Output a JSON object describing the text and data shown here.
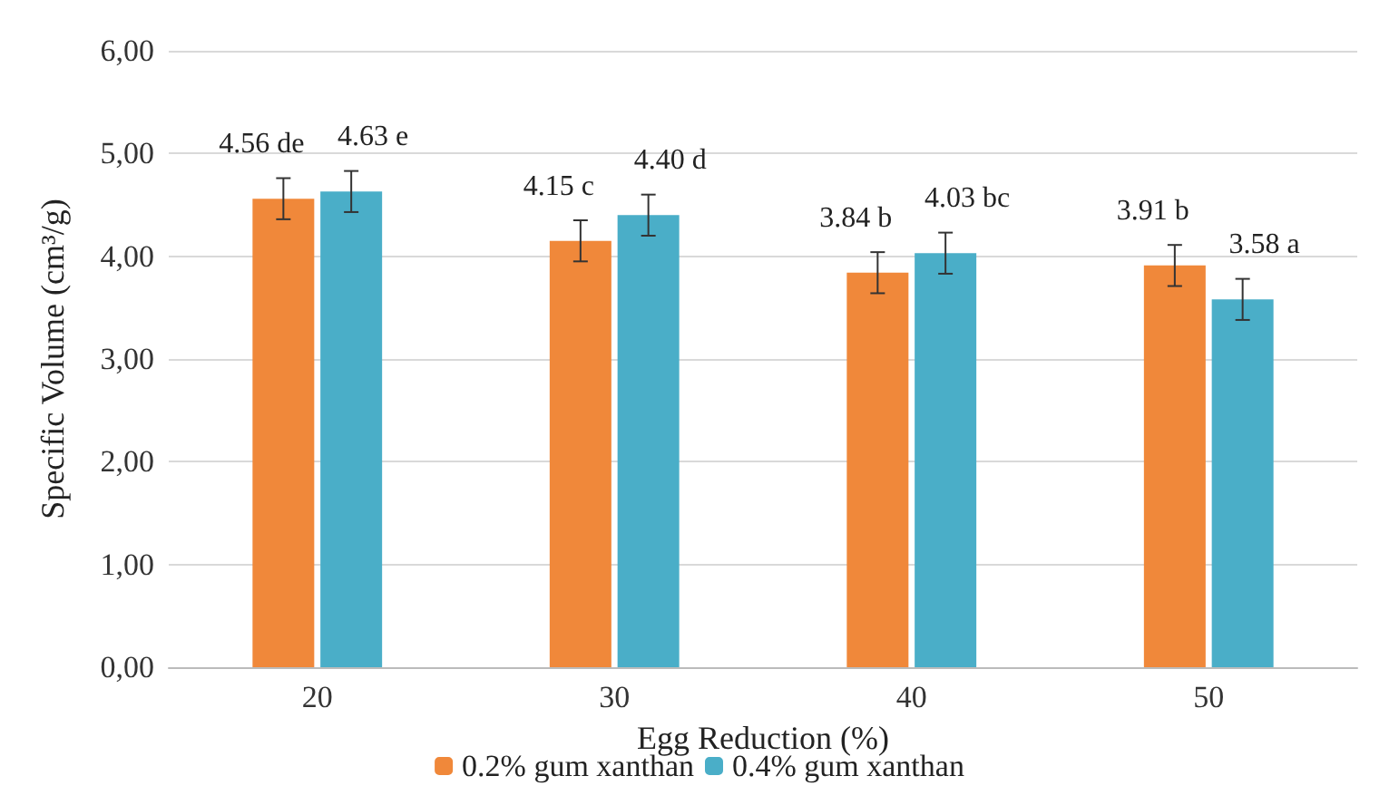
{
  "chart_data": {
    "type": "bar",
    "xlabel": "Egg Reduction (%)",
    "ylabel": "Specific Volume (cm³/g)",
    "categories": [
      "20",
      "30",
      "40",
      "50"
    ],
    "series": [
      {
        "name": "0.2% gum xanthan",
        "color": "#f0883a",
        "values": [
          4.56,
          4.15,
          3.84,
          3.91
        ],
        "errors": [
          0.2,
          0.2,
          0.2,
          0.2
        ],
        "value_labels": [
          "4.56 de",
          "4.15 c",
          "3.84 b",
          "3.91 b"
        ]
      },
      {
        "name": "0.4% gum xanthan",
        "color": "#4aaec8",
        "values": [
          4.63,
          4.4,
          4.03,
          3.58
        ],
        "errors": [
          0.2,
          0.2,
          0.2,
          0.2
        ],
        "value_labels": [
          "4.63 e",
          "4.40 d",
          "4.03 bc",
          "3.58 a"
        ]
      }
    ],
    "ylim": [
      0,
      6
    ],
    "yticks": [
      {
        "value": 0,
        "label": "0,00"
      },
      {
        "value": 1,
        "label": "1,00"
      },
      {
        "value": 2,
        "label": "2,00"
      },
      {
        "value": 3,
        "label": "3,00"
      },
      {
        "value": 4,
        "label": "4,00"
      },
      {
        "value": 5,
        "label": "5,00"
      },
      {
        "value": 6,
        "label": "6,00"
      }
    ],
    "grid": "y",
    "legend": "bottom"
  }
}
